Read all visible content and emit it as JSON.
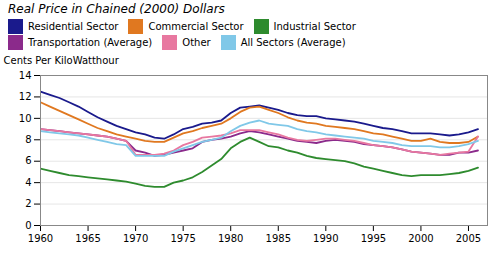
{
  "chart_data": {
    "type": "line",
    "title": "Real Price in Chained (2000) Dollars",
    "ylabel": "Cents Per KiloWatthour",
    "x": [
      1960,
      1961,
      1962,
      1963,
      1964,
      1965,
      1966,
      1967,
      1968,
      1969,
      1970,
      1971,
      1972,
      1973,
      1974,
      1975,
      1976,
      1977,
      1978,
      1979,
      1980,
      1981,
      1982,
      1983,
      1984,
      1985,
      1986,
      1987,
      1988,
      1989,
      1990,
      1991,
      1992,
      1993,
      1994,
      1995,
      1996,
      1997,
      1998,
      1999,
      2000,
      2001,
      2002,
      2003,
      2004,
      2005,
      2006
    ],
    "series": [
      {
        "name": "Residential Sector",
        "color": "#1a1a8c",
        "values": [
          12.5,
          12.2,
          11.9,
          11.5,
          11.1,
          10.6,
          10.1,
          9.7,
          9.3,
          9.0,
          8.7,
          8.5,
          8.2,
          8.1,
          8.5,
          9.0,
          9.2,
          9.5,
          9.6,
          9.8,
          10.5,
          11.0,
          11.1,
          11.2,
          11.0,
          10.8,
          10.5,
          10.3,
          10.2,
          10.2,
          10.0,
          9.9,
          9.8,
          9.7,
          9.5,
          9.3,
          9.1,
          9.0,
          8.8,
          8.6,
          8.6,
          8.6,
          8.5,
          8.4,
          8.5,
          8.7,
          9.0
        ]
      },
      {
        "name": "Commercial Sector",
        "color": "#e07820",
        "values": [
          11.5,
          11.1,
          10.7,
          10.3,
          9.9,
          9.5,
          9.1,
          8.8,
          8.5,
          8.3,
          8.1,
          7.9,
          7.8,
          7.8,
          8.2,
          8.6,
          8.8,
          9.1,
          9.3,
          9.5,
          10.0,
          10.6,
          11.0,
          11.1,
          10.8,
          10.5,
          10.1,
          9.8,
          9.6,
          9.5,
          9.3,
          9.2,
          9.1,
          9.0,
          8.8,
          8.6,
          8.5,
          8.3,
          8.1,
          7.9,
          7.9,
          8.1,
          7.8,
          7.7,
          7.7,
          7.8,
          8.3
        ]
      },
      {
        "name": "Industrial Sector",
        "color": "#2e8b2e",
        "values": [
          5.3,
          5.1,
          4.9,
          4.7,
          4.6,
          4.5,
          4.4,
          4.3,
          4.2,
          4.1,
          3.9,
          3.7,
          3.6,
          3.6,
          4.0,
          4.2,
          4.5,
          5.0,
          5.6,
          6.2,
          7.2,
          7.8,
          8.2,
          7.8,
          7.4,
          7.3,
          7.0,
          6.8,
          6.5,
          6.3,
          6.2,
          6.1,
          6.0,
          5.8,
          5.5,
          5.3,
          5.1,
          4.9,
          4.7,
          4.6,
          4.7,
          4.7,
          4.7,
          4.8,
          4.9,
          5.1,
          5.4
        ]
      },
      {
        "name": "Transportation (Average)",
        "color": "#8b2a8b",
        "values": [
          9.0,
          8.9,
          8.8,
          8.7,
          8.6,
          8.5,
          8.4,
          8.3,
          8.1,
          7.9,
          7.0,
          6.8,
          6.5,
          6.6,
          6.8,
          7.0,
          7.2,
          7.8,
          8.0,
          8.1,
          8.3,
          8.6,
          8.8,
          8.7,
          8.5,
          8.3,
          8.1,
          7.9,
          7.8,
          7.7,
          7.9,
          8.0,
          7.9,
          7.8,
          7.6,
          7.5,
          7.4,
          7.3,
          7.1,
          6.9,
          6.8,
          6.7,
          6.6,
          6.6,
          6.8,
          6.8,
          7.0
        ]
      },
      {
        "name": "Other",
        "color": "#e878a0",
        "values": [
          9.0,
          8.9,
          8.8,
          8.7,
          8.6,
          8.5,
          8.4,
          8.3,
          8.1,
          7.9,
          6.6,
          6.6,
          6.6,
          6.7,
          7.0,
          7.5,
          7.8,
          8.2,
          8.3,
          8.4,
          8.6,
          8.9,
          8.9,
          8.9,
          8.7,
          8.5,
          8.2,
          8.0,
          7.9,
          8.0,
          8.1,
          8.1,
          8.0,
          7.9,
          7.7,
          7.5,
          7.4,
          7.3,
          7.1,
          6.9,
          6.8,
          6.7,
          6.6,
          6.7,
          6.8,
          6.9,
          8.3
        ]
      },
      {
        "name": "All Sectors (Average)",
        "color": "#80c8e8",
        "values": [
          8.8,
          8.7,
          8.6,
          8.5,
          8.4,
          8.2,
          8.0,
          7.8,
          7.6,
          7.5,
          6.5,
          6.5,
          6.5,
          6.5,
          6.9,
          7.2,
          7.5,
          7.8,
          8.0,
          8.2,
          8.8,
          9.3,
          9.6,
          9.8,
          9.5,
          9.4,
          9.3,
          9.0,
          8.8,
          8.7,
          8.5,
          8.4,
          8.3,
          8.2,
          8.1,
          7.9,
          7.8,
          7.7,
          7.5,
          7.4,
          7.4,
          7.4,
          7.3,
          7.3,
          7.4,
          7.6,
          7.9
        ]
      }
    ],
    "xlim": [
      1960,
      2007
    ],
    "ylim": [
      0,
      14
    ],
    "xticks": [
      1960,
      1965,
      1970,
      1975,
      1980,
      1985,
      1990,
      1995,
      2000,
      2005
    ],
    "yticks": [
      0,
      2,
      4,
      6,
      8,
      10,
      12,
      14
    ],
    "grid": "y"
  }
}
